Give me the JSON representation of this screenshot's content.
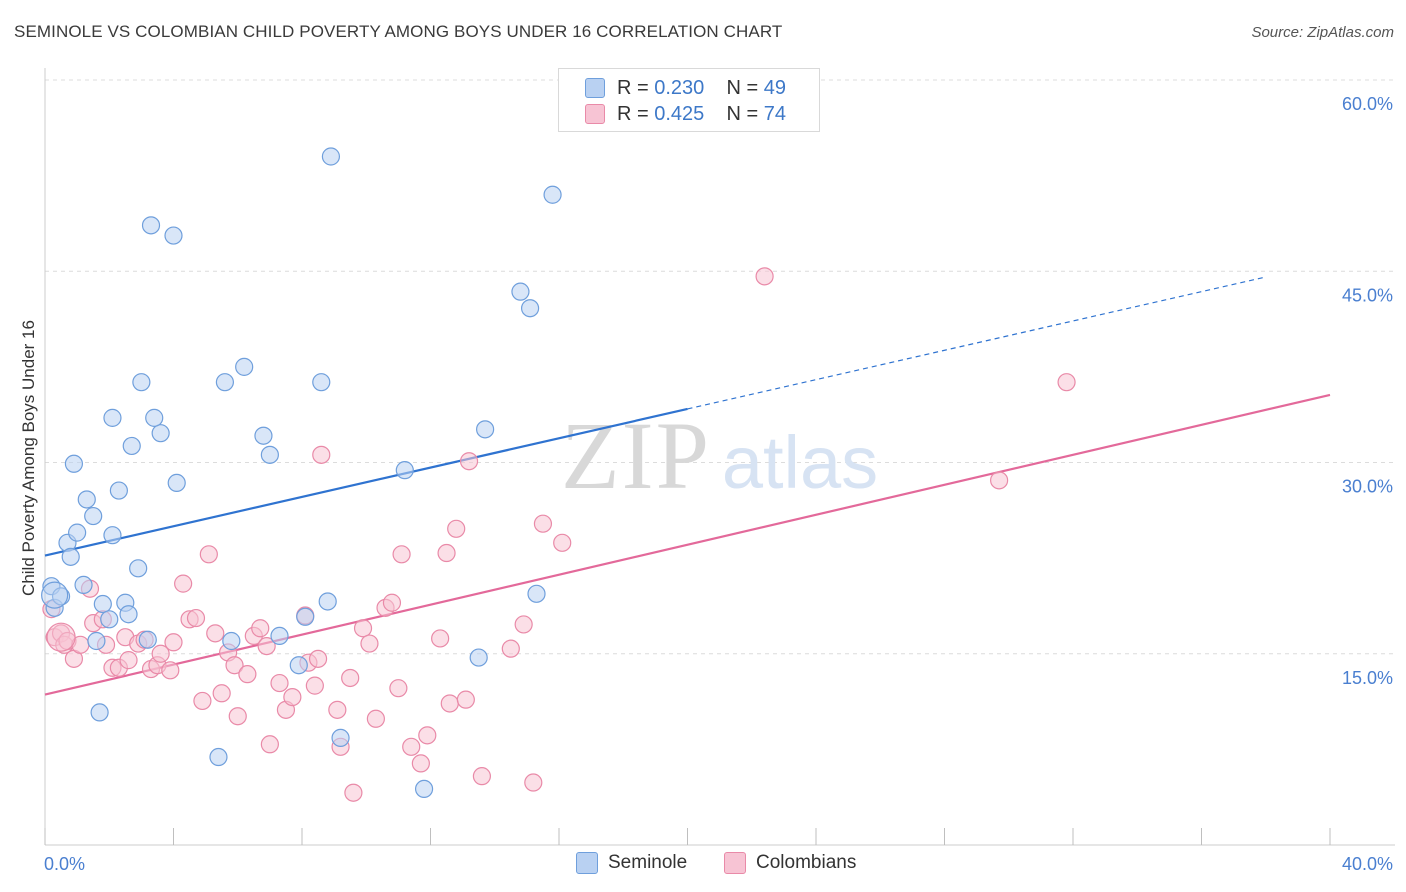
{
  "title": "SEMINOLE VS COLOMBIAN CHILD POVERTY AMONG BOYS UNDER 16 CORRELATION CHART",
  "source": "Source: ZipAtlas.com",
  "watermark": {
    "zip": "ZIP",
    "atlas": "atlas"
  },
  "colors": {
    "seminole_fill": "#b9d1f2",
    "seminole_stroke": "#6f9fdc",
    "seminole_line": "#2f73d0",
    "colombian_fill": "#f7c4d4",
    "colombian_stroke": "#e98aa8",
    "colombian_line": "#e3699a",
    "axis_text": "#4a7fd0",
    "grid": "#dcdcdc"
  },
  "legend_top": {
    "rows": [
      {
        "r_label": "R = ",
        "r_value": "0.230",
        "n_label": "N = ",
        "n_value": "49"
      },
      {
        "r_label": "R = ",
        "r_value": "0.425",
        "n_label": "N = ",
        "n_value": "74"
      }
    ]
  },
  "chart_data": {
    "type": "scatter",
    "title": "SEMINOLE VS COLOMBIAN CHILD POVERTY AMONG BOYS UNDER 16 CORRELATION CHART",
    "xlabel": "",
    "ylabel": "Child Poverty Among Boys Under 16",
    "xlim": [
      0,
      40
    ],
    "ylim": [
      0,
      60
    ],
    "x_tick_labels": [
      "0.0%",
      "40.0%"
    ],
    "y_tick_values": [
      15,
      30,
      45,
      60
    ],
    "y_tick_labels": [
      "15.0%",
      "30.0%",
      "45.0%",
      "60.0%"
    ],
    "grid": true,
    "legend_position": "top-center",
    "series": [
      {
        "name": "Seminole",
        "R": 0.23,
        "N": 49,
        "trend": {
          "x": [
            0,
            20
          ],
          "y": [
            22.7,
            34.2
          ]
        },
        "trend_dashed": {
          "x": [
            20,
            40
          ],
          "y": [
            34.2,
            45.7
          ]
        },
        "points": [
          [
            0.2,
            20.3
          ],
          [
            0.3,
            18.6
          ],
          [
            0.5,
            19.5
          ],
          [
            0.7,
            23.7
          ],
          [
            0.8,
            22.6
          ],
          [
            0.9,
            29.9
          ],
          [
            1.0,
            24.5
          ],
          [
            1.2,
            20.4
          ],
          [
            1.3,
            27.1
          ],
          [
            1.5,
            25.8
          ],
          [
            1.6,
            16.0
          ],
          [
            1.7,
            10.4
          ],
          [
            1.8,
            18.9
          ],
          [
            2.0,
            17.7
          ],
          [
            2.1,
            24.3
          ],
          [
            2.3,
            27.8
          ],
          [
            2.5,
            19.0
          ],
          [
            2.6,
            18.1
          ],
          [
            2.7,
            31.3
          ],
          [
            2.9,
            21.7
          ],
          [
            3.0,
            36.3
          ],
          [
            3.2,
            16.1
          ],
          [
            3.3,
            48.6
          ],
          [
            3.6,
            32.3
          ],
          [
            4.0,
            47.8
          ],
          [
            4.1,
            28.4
          ],
          [
            5.4,
            6.9
          ],
          [
            5.6,
            36.3
          ],
          [
            5.8,
            16.0
          ],
          [
            6.2,
            37.5
          ],
          [
            6.8,
            32.1
          ],
          [
            7.0,
            30.6
          ],
          [
            7.3,
            16.4
          ],
          [
            7.9,
            14.1
          ],
          [
            8.1,
            17.9
          ],
          [
            8.6,
            36.3
          ],
          [
            8.8,
            19.1
          ],
          [
            8.9,
            54.0
          ],
          [
            9.2,
            8.4
          ],
          [
            11.2,
            29.4
          ],
          [
            11.8,
            4.4
          ],
          [
            13.5,
            14.7
          ],
          [
            13.7,
            32.6
          ],
          [
            14.8,
            43.4
          ],
          [
            15.1,
            42.1
          ],
          [
            15.3,
            19.7
          ],
          [
            15.8,
            51.0
          ],
          [
            3.4,
            33.5
          ],
          [
            2.1,
            33.5
          ]
        ]
      },
      {
        "name": "Colombians",
        "R": 0.425,
        "N": 74,
        "trend": {
          "x": [
            0,
            40
          ],
          "y": [
            11.8,
            35.3
          ]
        },
        "points": [
          [
            0.2,
            18.5
          ],
          [
            0.3,
            16.3
          ],
          [
            0.5,
            16.6
          ],
          [
            0.6,
            15.7
          ],
          [
            0.7,
            16.0
          ],
          [
            0.9,
            14.6
          ],
          [
            1.1,
            15.7
          ],
          [
            1.4,
            20.1
          ],
          [
            1.5,
            17.4
          ],
          [
            1.8,
            17.7
          ],
          [
            1.9,
            15.7
          ],
          [
            2.1,
            13.9
          ],
          [
            2.3,
            13.9
          ],
          [
            2.5,
            16.3
          ],
          [
            2.6,
            14.5
          ],
          [
            2.9,
            15.8
          ],
          [
            3.1,
            16.1
          ],
          [
            3.3,
            13.8
          ],
          [
            3.5,
            14.1
          ],
          [
            3.6,
            15.0
          ],
          [
            3.9,
            13.7
          ],
          [
            4.0,
            15.9
          ],
          [
            4.3,
            20.5
          ],
          [
            4.5,
            17.7
          ],
          [
            4.7,
            17.8
          ],
          [
            4.9,
            11.3
          ],
          [
            5.1,
            22.8
          ],
          [
            5.3,
            16.6
          ],
          [
            5.5,
            11.9
          ],
          [
            5.7,
            15.1
          ],
          [
            5.9,
            14.1
          ],
          [
            6.0,
            10.1
          ],
          [
            6.3,
            13.4
          ],
          [
            6.5,
            16.4
          ],
          [
            6.7,
            17.0
          ],
          [
            6.9,
            15.6
          ],
          [
            7.0,
            7.9
          ],
          [
            7.3,
            12.7
          ],
          [
            7.5,
            10.6
          ],
          [
            7.7,
            11.6
          ],
          [
            8.1,
            18.0
          ],
          [
            8.2,
            14.3
          ],
          [
            8.4,
            12.5
          ],
          [
            8.5,
            14.6
          ],
          [
            8.6,
            30.6
          ],
          [
            9.1,
            10.6
          ],
          [
            9.2,
            7.7
          ],
          [
            9.5,
            13.1
          ],
          [
            9.6,
            4.1
          ],
          [
            9.9,
            17.0
          ],
          [
            10.1,
            15.8
          ],
          [
            10.3,
            9.9
          ],
          [
            10.6,
            18.6
          ],
          [
            10.8,
            19.0
          ],
          [
            11.0,
            12.3
          ],
          [
            11.1,
            22.8
          ],
          [
            11.4,
            7.7
          ],
          [
            11.7,
            6.4
          ],
          [
            11.9,
            8.6
          ],
          [
            12.3,
            16.2
          ],
          [
            12.5,
            22.9
          ],
          [
            12.6,
            11.1
          ],
          [
            12.8,
            24.8
          ],
          [
            13.1,
            11.4
          ],
          [
            13.2,
            30.1
          ],
          [
            13.6,
            5.4
          ],
          [
            14.5,
            15.4
          ],
          [
            14.9,
            17.3
          ],
          [
            15.2,
            4.9
          ],
          [
            15.5,
            25.2
          ],
          [
            16.1,
            23.7
          ],
          [
            22.4,
            44.6
          ],
          [
            29.7,
            28.6
          ],
          [
            31.8,
            36.3
          ]
        ]
      }
    ]
  },
  "bottom_legend": [
    {
      "label": "Seminole"
    },
    {
      "label": "Colombians"
    }
  ]
}
